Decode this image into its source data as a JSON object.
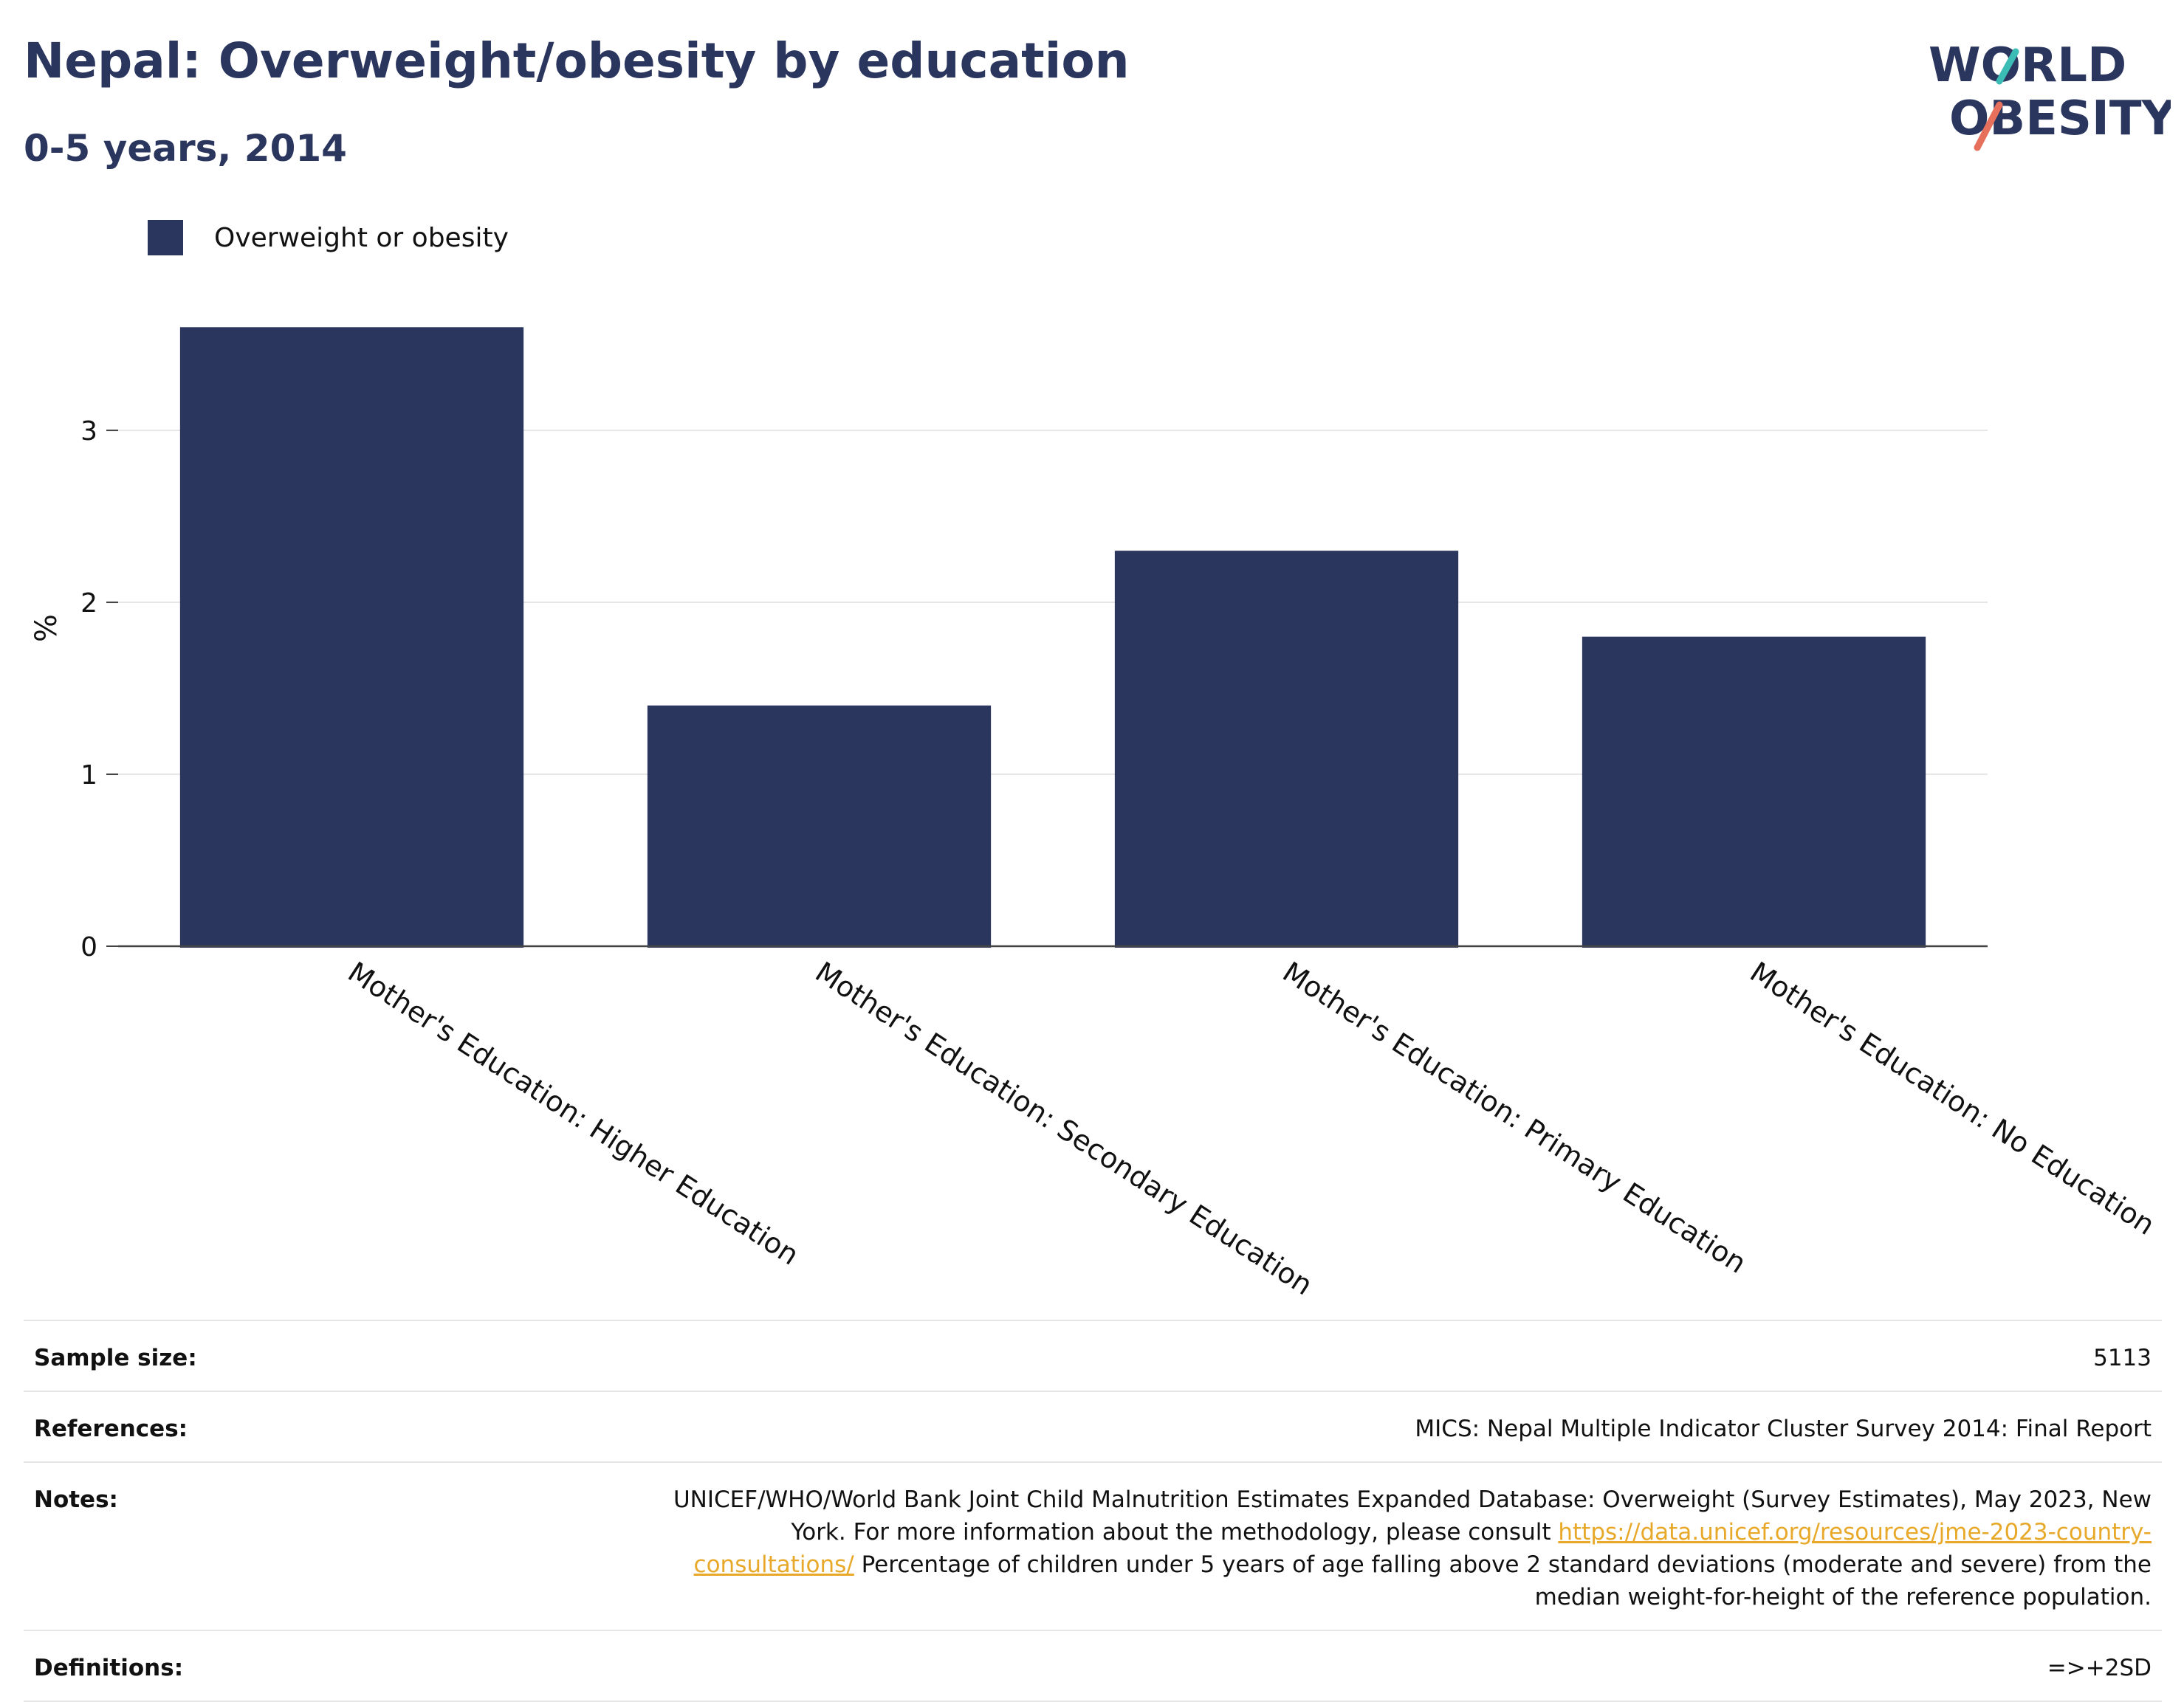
{
  "title": "Nepal: Overweight/obesity by education",
  "subtitle": "0-5 years, 2014",
  "logo": {
    "line1": "WORLD",
    "line2": "OBESITY"
  },
  "colors": {
    "bar": "#2b365f",
    "title": "#2b365f",
    "grid": "#e6e6e6",
    "axis": "#444444",
    "link": "#e8a92a",
    "logo_teal": "#3bbcb5",
    "logo_coral": "#e7705c"
  },
  "chart_data": {
    "type": "bar",
    "categories": [
      "Mother's Education: Higher Education",
      "Mother's Education: Secondary Education",
      "Mother's Education: Primary Education",
      "Mother's Education: No Education"
    ],
    "series": [
      {
        "name": "Overweight or obesity",
        "values": [
          3.6,
          1.4,
          2.3,
          1.8
        ]
      }
    ],
    "ylabel": "%",
    "xlabel": "",
    "ylim": [
      0,
      3.7
    ],
    "yticks": [
      0,
      1,
      2,
      3
    ],
    "grid": true,
    "legend": "top-left"
  },
  "info": {
    "sample_size_label": "Sample size:",
    "sample_size_value": "5113",
    "references_label": "References:",
    "references_value": "MICS: Nepal Multiple Indicator Cluster Survey 2014: Final Report",
    "notes_label": "Notes:",
    "notes_text_1": "UNICEF/WHO/World Bank Joint Child Malnutrition Estimates Expanded Database: Overweight (Survey Estimates), May 2023, New York. For more information about the methodology, please consult ",
    "notes_link": "https://data.unicef.org/resources/jme-2023-country-consultations/",
    "notes_text_2": " Percentage of children under 5 years of age falling above 2 standard deviations (moderate and severe) from the median weight-for-height of the reference population.",
    "definitions_label": "Definitions:",
    "definitions_value": "=>+2SD"
  }
}
